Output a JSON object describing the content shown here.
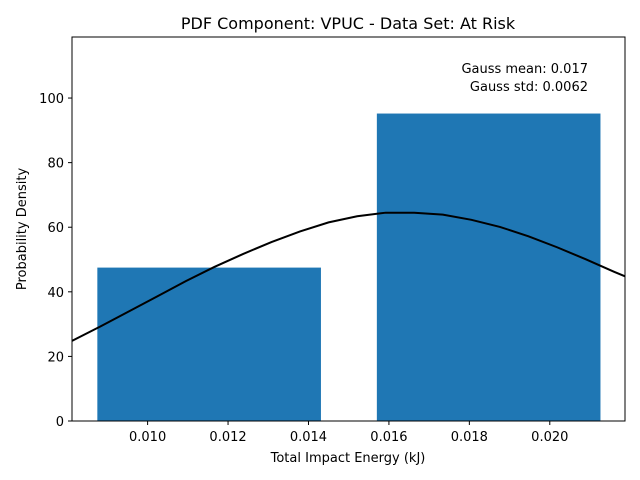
{
  "chart_data": {
    "type": "bar",
    "title": "PDF Component: VPUC - Data Set: At Risk",
    "xlabel": "Total Impact Energy (kJ)",
    "ylabel": "Probability Density",
    "xlim": [
      0.00812,
      0.02187
    ],
    "ylim": [
      0,
      118.9
    ],
    "grid": false,
    "xticks": [
      0.01,
      0.012,
      0.014,
      0.016,
      0.018,
      0.02
    ],
    "xtick_labels": [
      "0.010",
      "0.012",
      "0.014",
      "0.016",
      "0.018",
      "0.020"
    ],
    "yticks": [
      0,
      20,
      40,
      60,
      80,
      100
    ],
    "ytick_labels": [
      "0",
      "20",
      "40",
      "60",
      "80",
      "100"
    ],
    "bar_color": "#1f77b4",
    "curve_color": "#000000",
    "bars": [
      {
        "x0": 0.00875,
        "x1": 0.01431,
        "value": 47.5
      },
      {
        "x0": 0.0157,
        "x1": 0.02126,
        "value": 95.2
      }
    ],
    "gauss_curve": {
      "mean": 0.017,
      "std": 0.0062,
      "points": [
        [
          0.00812,
          24.8
        ],
        [
          0.00883,
          29.3
        ],
        [
          0.00953,
          33.9
        ],
        [
          0.01024,
          38.6
        ],
        [
          0.01095,
          43.3
        ],
        [
          0.01166,
          47.7
        ],
        [
          0.01237,
          51.7
        ],
        [
          0.01308,
          55.4
        ],
        [
          0.01379,
          58.7
        ],
        [
          0.0145,
          61.5
        ],
        [
          0.01521,
          63.4
        ],
        [
          0.01592,
          64.5
        ],
        [
          0.01663,
          64.5
        ],
        [
          0.01734,
          63.9
        ],
        [
          0.01805,
          62.3
        ],
        [
          0.01876,
          60.1
        ],
        [
          0.01947,
          57.2
        ],
        [
          0.02018,
          53.8
        ],
        [
          0.02089,
          50.1
        ],
        [
          0.0216,
          46.2
        ],
        [
          0.02187,
          44.8
        ]
      ]
    },
    "annotations": [
      "Gauss mean: 0.017",
      "Gauss std: 0.0062"
    ]
  }
}
